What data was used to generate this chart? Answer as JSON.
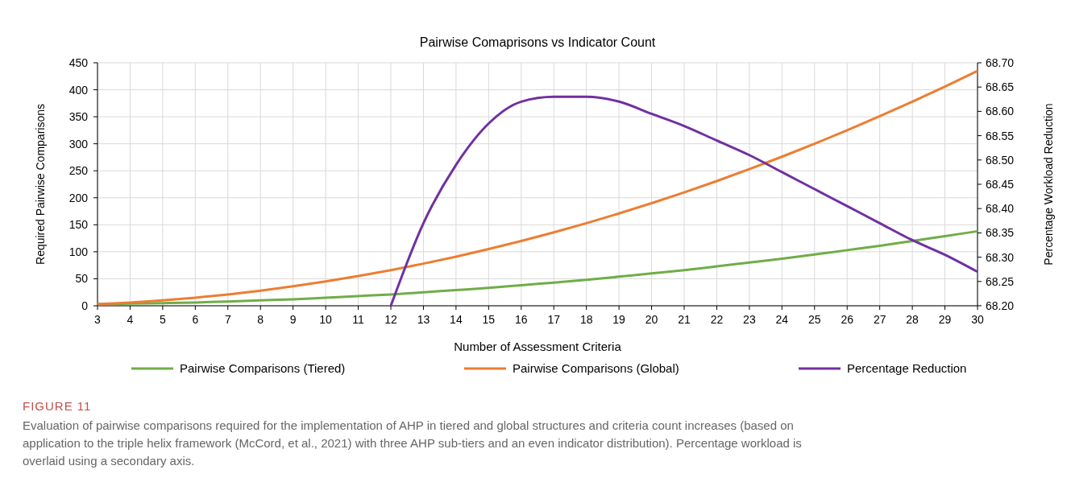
{
  "chart_data": {
    "type": "line",
    "title": "Pairwise Comaprisons vs Indicator Count",
    "xlabel": "Number of Assessment Criteria",
    "ylabel": "Required Pairwise Comparisons",
    "y2label": "Percentage Workload Reduction",
    "x": [
      3,
      4,
      5,
      6,
      7,
      8,
      9,
      10,
      11,
      12,
      13,
      14,
      15,
      16,
      17,
      18,
      19,
      20,
      21,
      22,
      23,
      24,
      25,
      26,
      27,
      28,
      29,
      30
    ],
    "series": [
      {
        "name": "Pairwise Comparisons (Tiered)",
        "color": "#70ad47",
        "values": [
          3,
          4,
          5,
          6,
          8,
          10,
          12,
          15,
          18,
          21,
          25,
          29,
          33,
          38,
          43,
          48,
          54,
          60,
          66,
          73,
          80,
          87,
          95,
          103,
          111,
          120,
          129,
          138
        ]
      },
      {
        "name": "Pairwise Comparisons (Global)",
        "color": "#ed7d31",
        "values": [
          3,
          6,
          10,
          15,
          21,
          28,
          36,
          45,
          55,
          66,
          78,
          91,
          105,
          120,
          136,
          153,
          171,
          190,
          210,
          231,
          253,
          276,
          300,
          325,
          351,
          378,
          406,
          435
        ]
      },
      {
        "name": "Percentage Reduction",
        "color": "#7030a0",
        "axis": "y2",
        "x": [
          12,
          13,
          14,
          15,
          16,
          17,
          18,
          19,
          20,
          21,
          22,
          23,
          24,
          25,
          26,
          27,
          28,
          29,
          30
        ],
        "values": [
          68.2,
          68.37,
          68.49,
          68.575,
          68.62,
          68.63,
          68.63,
          68.62,
          68.595,
          68.57,
          68.54,
          68.51,
          68.475,
          68.44,
          68.405,
          68.37,
          68.335,
          68.305,
          68.27
        ]
      }
    ],
    "xlim": [
      3,
      30
    ],
    "xticks": [
      3,
      4,
      5,
      6,
      7,
      8,
      9,
      10,
      11,
      12,
      13,
      14,
      15,
      16,
      17,
      18,
      19,
      20,
      21,
      22,
      23,
      24,
      25,
      26,
      27,
      28,
      29,
      30
    ],
    "ylim": [
      0,
      450
    ],
    "yticks": [
      0,
      50,
      100,
      150,
      200,
      250,
      300,
      350,
      400,
      450
    ],
    "y2lim": [
      68.2,
      68.7
    ],
    "y2ticks": [
      {
        "value": 68.2,
        "label": "68.20"
      },
      {
        "value": 68.25,
        "label": "68.25"
      },
      {
        "value": 68.3,
        "label": "68.30"
      },
      {
        "value": 68.35,
        "label": "68.35"
      },
      {
        "value": 68.4,
        "label": "68.40"
      },
      {
        "value": 68.45,
        "label": "68.45"
      },
      {
        "value": 68.5,
        "label": "68.50"
      },
      {
        "value": 68.55,
        "label": "68.55"
      },
      {
        "value": 68.6,
        "label": "68.60"
      },
      {
        "value": 68.65,
        "label": "68.65"
      },
      {
        "value": 68.7,
        "label": "68.70"
      }
    ],
    "grid": true,
    "legend": "bottom",
    "marker": "none",
    "line_style": "solid",
    "annotations": [
      "FIGURE 11",
      "Evaluation of pairwise comparisons required for the implementation of AHP in tiered and global structures and criteria count increases (based on application to the triple helix framework (McCord, et al., 2021) with three AHP sub-tiers and an even indicator distribution). Percentage workload is overlaid using a secondary axis."
    ]
  }
}
